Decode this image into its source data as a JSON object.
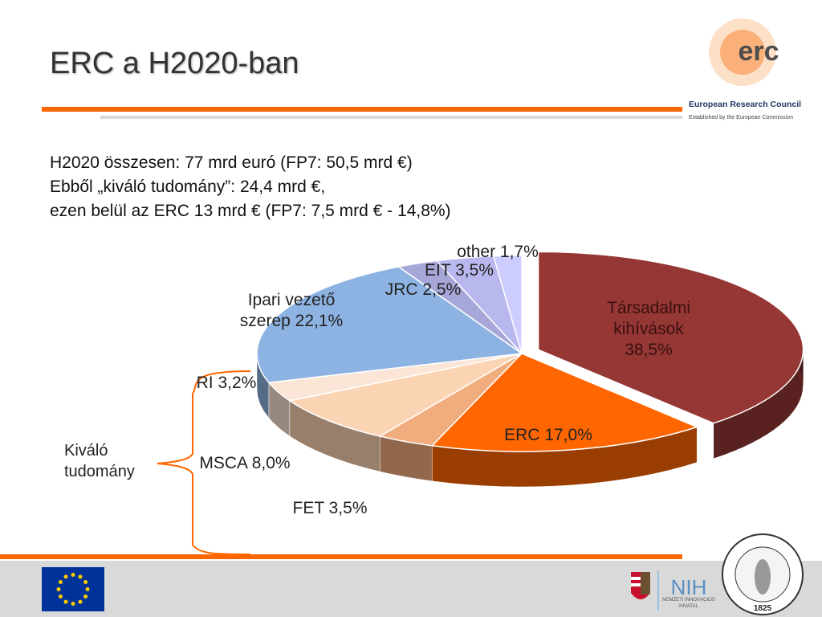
{
  "title": "ERC a H2020-ban",
  "bullets": [
    [
      "H2020 összesen: 77 mrd euró (FP7: 50,5 mrd €)"
    ],
    [
      "Ebből „kiváló tudomány”: 24,4 mrd €,",
      "ezen belül az ERC 13 mrd € (FP7: 7,5 mrd € - 14,8%)"
    ]
  ],
  "bracket_label": "Kiváló tudomány",
  "logos": {
    "erc_mark": "erc",
    "erc_name": "European Research Council",
    "erc_tagline": "Established by the European Commission",
    "nih_mark": "NIH",
    "nih_name": "NEMZETI INNOVÁCIÓS HIVATAL",
    "mta_year": "1825"
  },
  "chart_data": {
    "type": "pie",
    "categories": [
      "Társadalmi kihívások",
      "ERC",
      "FET",
      "MSCA",
      "RI",
      "Ipari vezető szerep",
      "JRC",
      "EIT",
      "other"
    ],
    "values": [
      38.5,
      17.0,
      3.5,
      8.0,
      3.2,
      22.1,
      2.5,
      3.5,
      1.7
    ],
    "value_labels": [
      "38,5%",
      "17,0%",
      "3,5%",
      "8,0%",
      "3,2%",
      "22,1%",
      "2,5%",
      "3,5%",
      "1,7%"
    ],
    "colors": [
      "#953735",
      "#ff6600",
      "#f2ad7e",
      "#fbd4b4",
      "#fbe5d6",
      "#8db3e2",
      "#a6a6d9",
      "#b8b8ee",
      "#ccccff"
    ]
  }
}
